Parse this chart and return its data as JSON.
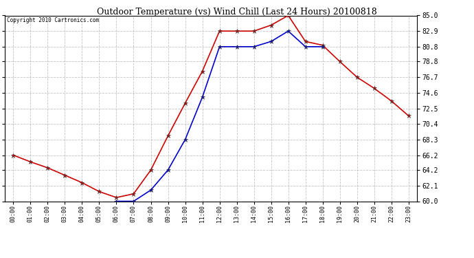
{
  "title": "Outdoor Temperature (vs) Wind Chill (Last 24 Hours) 20100818",
  "copyright": "Copyright 2010 Cartronics.com",
  "hours": [
    "00:00",
    "01:00",
    "02:00",
    "03:00",
    "04:00",
    "05:00",
    "06:00",
    "07:00",
    "08:00",
    "09:00",
    "10:00",
    "11:00",
    "12:00",
    "13:00",
    "14:00",
    "15:00",
    "16:00",
    "17:00",
    "18:00",
    "19:00",
    "20:00",
    "21:00",
    "22:00",
    "23:00"
  ],
  "temp": [
    66.2,
    65.3,
    64.5,
    63.5,
    62.5,
    61.3,
    60.5,
    61.0,
    64.2,
    68.8,
    73.2,
    77.5,
    82.9,
    82.9,
    82.9,
    83.7,
    85.0,
    81.5,
    81.0,
    78.8,
    76.7,
    75.2,
    73.5,
    71.5
  ],
  "windchill": [
    null,
    null,
    null,
    null,
    null,
    null,
    60.0,
    60.0,
    61.5,
    64.2,
    68.3,
    74.0,
    80.8,
    80.8,
    80.8,
    81.5,
    82.9,
    80.8,
    80.8,
    null,
    null,
    null,
    null,
    null
  ],
  "temp_color": "#cc0000",
  "windchill_color": "#0000cc",
  "bg_color": "#ffffff",
  "grid_color": "#aaaaaa",
  "ylim_min": 60.0,
  "ylim_max": 85.0,
  "yticks": [
    60.0,
    62.1,
    64.2,
    66.2,
    68.3,
    70.4,
    72.5,
    74.6,
    76.7,
    78.8,
    80.8,
    82.9,
    85.0
  ]
}
